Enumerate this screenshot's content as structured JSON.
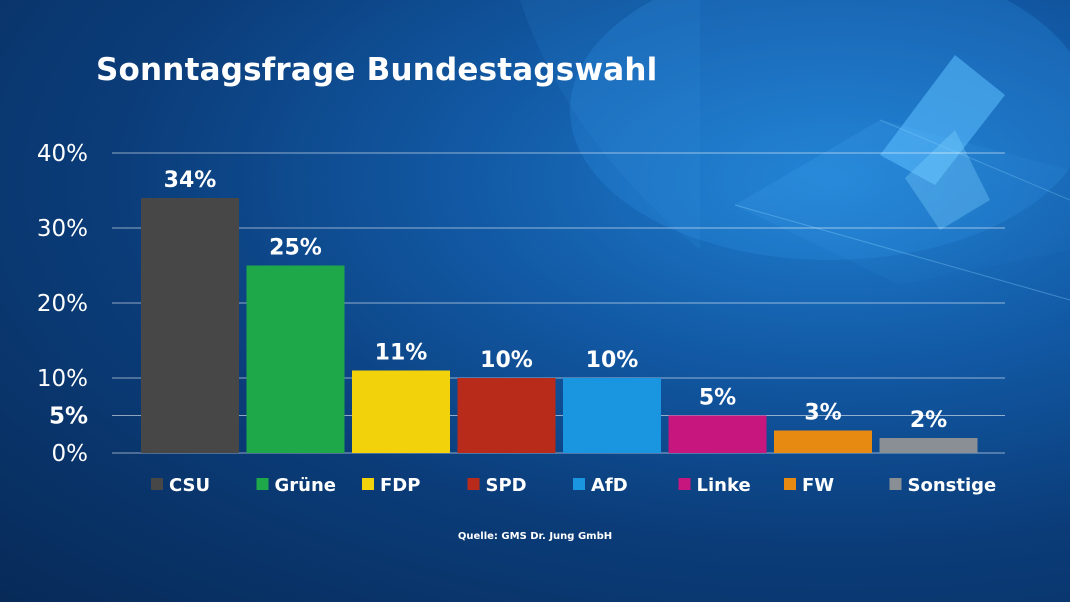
{
  "colors": {
    "background": "#0b3d7a",
    "gridline": "#ffffff"
  },
  "chart_data": {
    "type": "bar",
    "title": "Sonntagsfrage Bundestagswahl",
    "categories": [
      "CSU",
      "Grüne",
      "FDP",
      "SPD",
      "AfD",
      "Linke",
      "FW",
      "Sonstige"
    ],
    "values": [
      34,
      25,
      11,
      10,
      10,
      5,
      3,
      2
    ],
    "value_labels": [
      "34%",
      "25%",
      "11%",
      "10%",
      "10%",
      "5%",
      "3%",
      "2%"
    ],
    "colors": [
      "#474747",
      "#1fa84a",
      "#f2d20a",
      "#b82a19",
      "#1a96e0",
      "#c8167f",
      "#e68a12",
      "#8a8f96"
    ],
    "yticks": [
      {
        "value": 40,
        "label": "40%",
        "bold": false
      },
      {
        "value": 30,
        "label": "30%",
        "bold": false
      },
      {
        "value": 20,
        "label": "20%",
        "bold": false
      },
      {
        "value": 10,
        "label": "10%",
        "bold": false
      },
      {
        "value": 5,
        "label": "5%",
        "bold": true
      },
      {
        "value": 0,
        "label": "0%",
        "bold": false
      }
    ],
    "ylim": [
      0,
      40
    ],
    "grid": true,
    "legend_position": "bottom",
    "source": "Quelle: GMS Dr. Jung GmbH"
  }
}
